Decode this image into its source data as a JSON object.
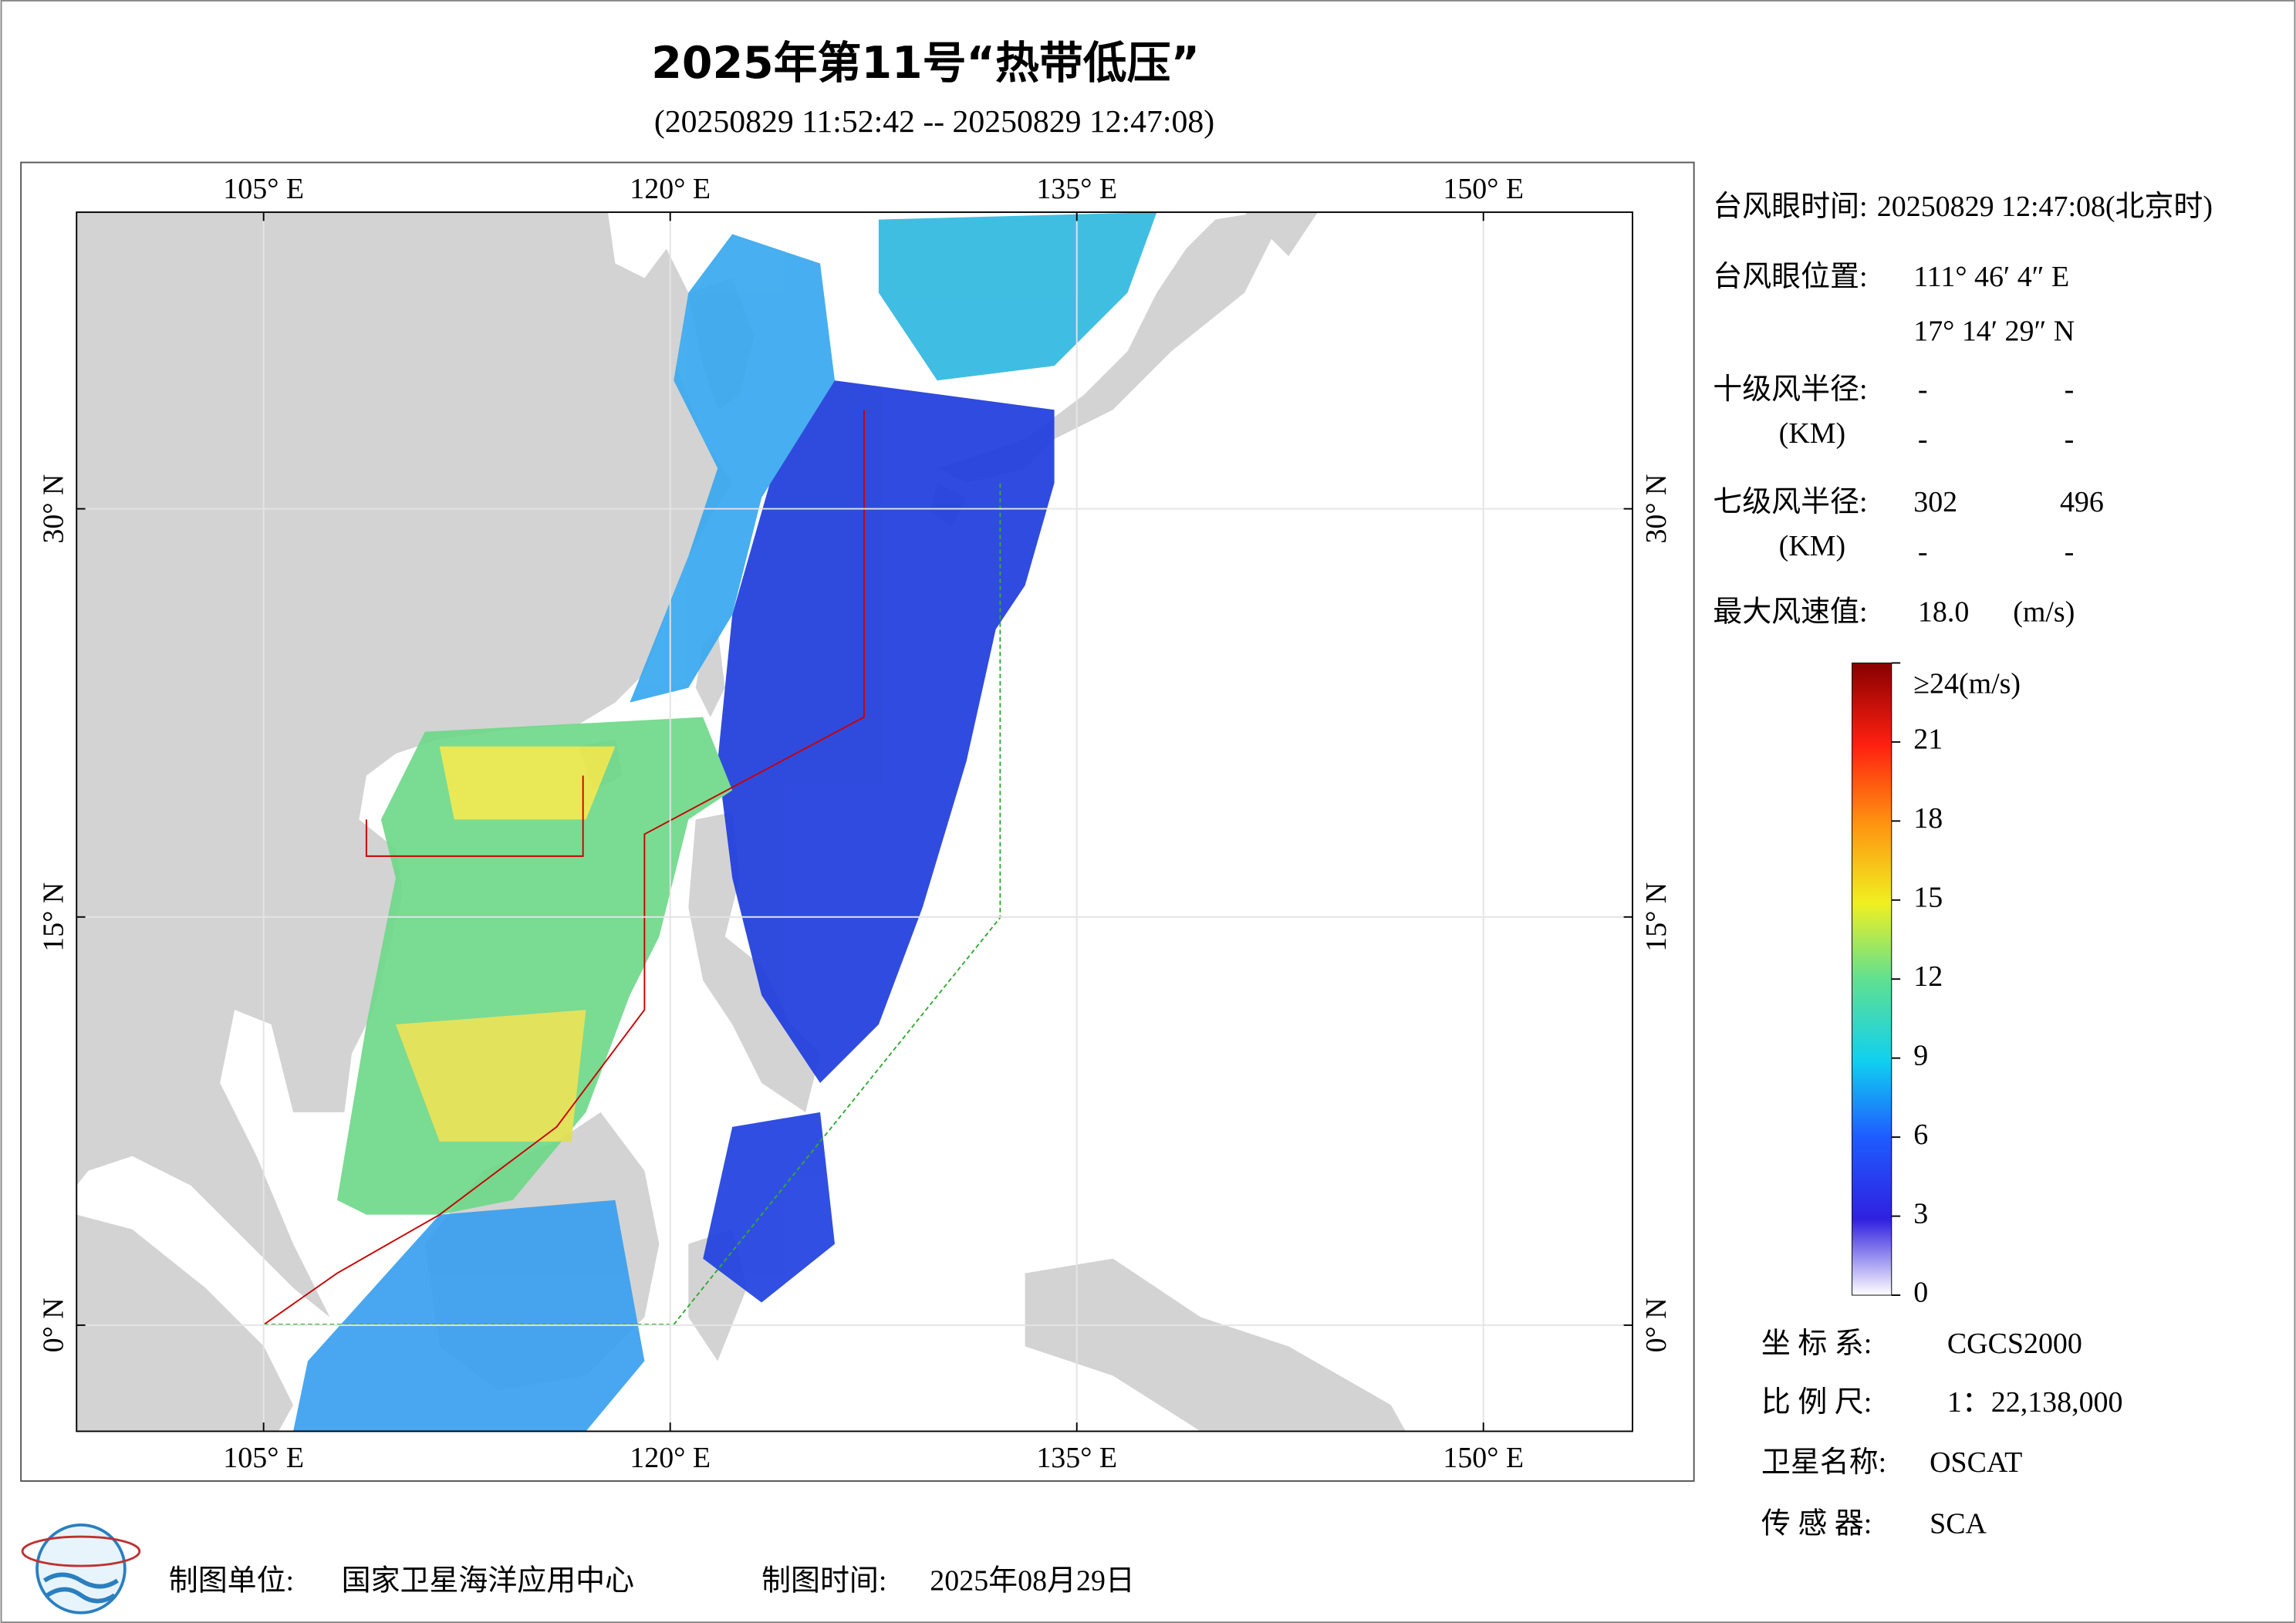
{
  "header": {
    "title": "2025年第11号“热带低压”",
    "subtitle": "(20250829 11:52:42 -- 20250829 12:47:08)"
  },
  "map": {
    "lon_lim": [
      98.1,
      155.5
    ],
    "lat_lim": [
      -3.9,
      40.9
    ],
    "lon_ticks": [
      {
        "value": 105,
        "label": "105° E"
      },
      {
        "value": 120,
        "label": "120° E"
      },
      {
        "value": 135,
        "label": "135° E"
      },
      {
        "value": 150,
        "label": "150° E"
      }
    ],
    "lat_ticks": [
      {
        "value": 0,
        "label": "0° N"
      },
      {
        "value": 15,
        "label": "15° N"
      },
      {
        "value": 30,
        "label": "30° N"
      }
    ]
  },
  "info": {
    "eye_time_label": "台风眼时间:",
    "eye_time": "20250829 12:47:08(北京时)",
    "eye_pos_label": "台风眼位置:",
    "eye_lon": "111° 46′ 4″ E",
    "eye_lat": "17° 14′ 29″ N",
    "r10_label": "十级风半径:",
    "r10_unit": "(KM)",
    "r10": [
      "-",
      "-",
      "-",
      "-"
    ],
    "r7_label": "七级风半径:",
    "r7_unit": "(KM)",
    "r7": [
      "302",
      "496",
      "-",
      "-"
    ],
    "vmax_label": "最大风速值:",
    "vmax": "18.0",
    "vmax_unit": "(m/s)"
  },
  "colorbar": {
    "lim": [
      0,
      24
    ],
    "ticks": [
      0,
      3,
      6,
      9,
      12,
      15,
      18,
      21,
      {
        "value": 24,
        "label": "≥24(m/s)"
      }
    ]
  },
  "meta": {
    "crs_label": "坐 标 系:",
    "crs": "CGCS2000",
    "scale_label": "比 例 尺:",
    "scale": "1：22,138,000",
    "sat_label": "卫星名称:",
    "sat": "OSCAT",
    "sensor_label": "传 感 器:",
    "sensor": "SCA"
  },
  "footer": {
    "org_label": "制图单位:",
    "org": "国家卫星海洋应用中心",
    "date_label": "制图时间:",
    "date": "2025年08月29日"
  }
}
